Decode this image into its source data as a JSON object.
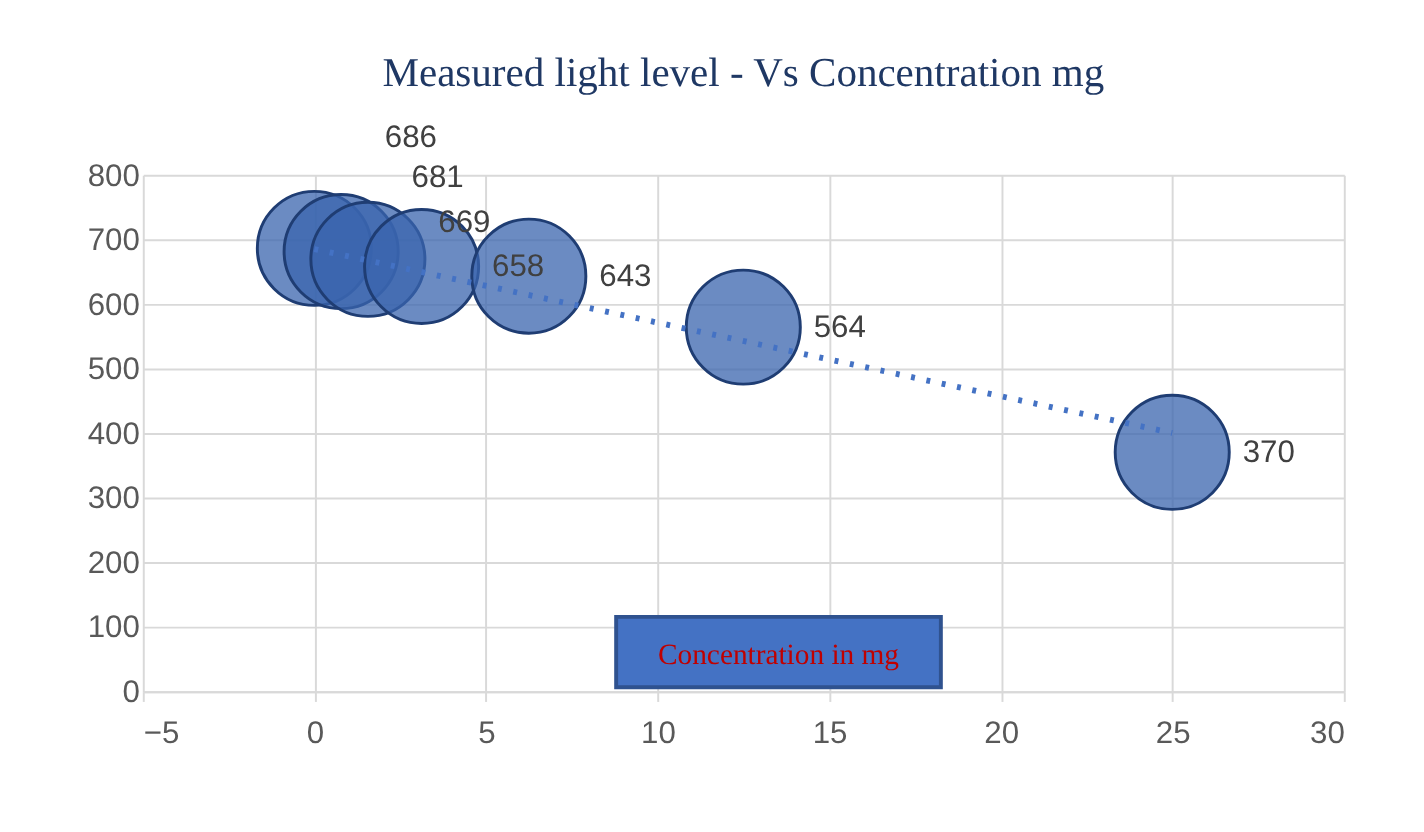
{
  "chart_data": {
    "type": "bubble",
    "title": "Measured light level - Vs Concentration mg",
    "x": [
      0,
      0.78,
      1.56,
      3.125,
      6.25,
      12.5,
      25
    ],
    "series": [
      {
        "color": "#3a64ad",
        "values": [
          686,
          681,
          669,
          658,
          643,
          564,
          370
        ],
        "sizes": [
          1,
          1,
          1,
          1,
          1,
          1,
          1
        ],
        "data_labels": true
      },
      {
        "type": "line",
        "x": [
          0,
          25
        ],
        "values": [
          685,
          400
        ],
        "color": "#4472c4",
        "line_style": "dotted",
        "marker": "none"
      }
    ],
    "xlim": [
      -5,
      30
    ],
    "xticks": [
      -5,
      0,
      5,
      10,
      15,
      20,
      25,
      30
    ],
    "ylim": [
      0,
      800
    ],
    "yticks": [
      0,
      100,
      200,
      300,
      400,
      500,
      600,
      700,
      800
    ],
    "grid": true,
    "annotations": [
      "Concentration in mg"
    ]
  }
}
